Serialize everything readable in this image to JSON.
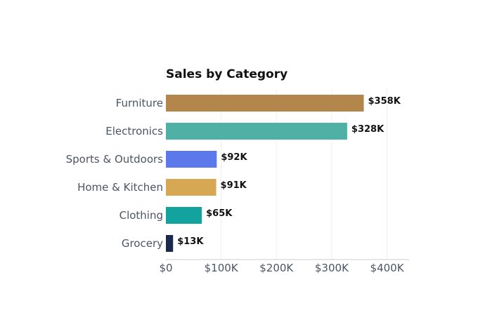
{
  "chart_data": {
    "type": "bar",
    "orientation": "horizontal",
    "title": "Sales by Category",
    "xlabel": "",
    "ylabel": "",
    "categories": [
      "Furniture",
      "Electronics",
      "Sports & Outdoors",
      "Home & Kitchen",
      "Clothing",
      "Grocery"
    ],
    "values": [
      358,
      328,
      92,
      91,
      65,
      13
    ],
    "value_labels": [
      "$358K",
      "$328K",
      "$92K",
      "$91K",
      "$65K",
      "$13K"
    ],
    "colors": [
      "#b3874b",
      "#4fb0a5",
      "#5b79ea",
      "#d6a854",
      "#12a39e",
      "#1b2a4a"
    ],
    "xlim": [
      0,
      440
    ],
    "xticks": [
      0,
      100,
      200,
      300,
      400
    ],
    "xtick_labels": [
      "$0",
      "$100K",
      "$200K",
      "$300K",
      "$400K"
    ],
    "grid": true,
    "legend": "none"
  }
}
